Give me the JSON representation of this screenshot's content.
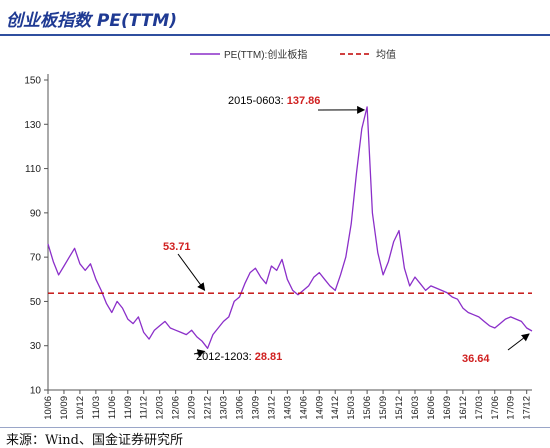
{
  "header": {
    "title": "创业板指数 PE(TTM)"
  },
  "source": "来源：Wind、国金证券研究所",
  "chart_data": {
    "type": "line",
    "title": "",
    "xlabel": "",
    "ylabel": "",
    "ylim": [
      10,
      150
    ],
    "yticks": [
      10,
      30,
      50,
      70,
      90,
      110,
      130,
      150
    ],
    "x_tick_labels": [
      "10/06",
      "10/09",
      "10/12",
      "11/03",
      "11/06",
      "11/09",
      "11/12",
      "12/03",
      "12/06",
      "12/09",
      "12/12",
      "13/03",
      "13/06",
      "13/09",
      "13/12",
      "14/03",
      "14/06",
      "14/09",
      "14/12",
      "15/03",
      "15/06",
      "15/09",
      "15/12",
      "16/03",
      "16/06",
      "16/09",
      "16/12",
      "17/03",
      "17/06",
      "17/09",
      "17/12"
    ],
    "legend": {
      "placement": "top",
      "entries": [
        "PE(TTM):创业板指",
        "均值"
      ]
    },
    "series": [
      {
        "name": "PE(TTM):创业板指",
        "color": "#8b2fc9",
        "points": [
          [
            "2010-06",
            76
          ],
          [
            "2010-07",
            68
          ],
          [
            "2010-08",
            62
          ],
          [
            "2010-09",
            66
          ],
          [
            "2010-10",
            70
          ],
          [
            "2010-11",
            74
          ],
          [
            "2010-12",
            67
          ],
          [
            "2011-01",
            64
          ],
          [
            "2011-02",
            67
          ],
          [
            "2011-03",
            60
          ],
          [
            "2011-04",
            55
          ],
          [
            "2011-05",
            49
          ],
          [
            "2011-06",
            45
          ],
          [
            "2011-07",
            50
          ],
          [
            "2011-08",
            47
          ],
          [
            "2011-09",
            42
          ],
          [
            "2011-10",
            40
          ],
          [
            "2011-11",
            43
          ],
          [
            "2011-12",
            36
          ],
          [
            "2012-01",
            33
          ],
          [
            "2012-02",
            37
          ],
          [
            "2012-03",
            39
          ],
          [
            "2012-04",
            41
          ],
          [
            "2012-05",
            38
          ],
          [
            "2012-06",
            37
          ],
          [
            "2012-07",
            36
          ],
          [
            "2012-08",
            35
          ],
          [
            "2012-09",
            37
          ],
          [
            "2012-10",
            34
          ],
          [
            "2012-11",
            32
          ],
          [
            "2012-12",
            28.81
          ],
          [
            "2013-01",
            35
          ],
          [
            "2013-02",
            38
          ],
          [
            "2013-03",
            41
          ],
          [
            "2013-04",
            43
          ],
          [
            "2013-05",
            50
          ],
          [
            "2013-06",
            52
          ],
          [
            "2013-07",
            58
          ],
          [
            "2013-08",
            63
          ],
          [
            "2013-09",
            65
          ],
          [
            "2013-10",
            61
          ],
          [
            "2013-11",
            58
          ],
          [
            "2013-12",
            66
          ],
          [
            "2014-01",
            64
          ],
          [
            "2014-02",
            69
          ],
          [
            "2014-03",
            60
          ],
          [
            "2014-04",
            55
          ],
          [
            "2014-05",
            53
          ],
          [
            "2014-06",
            55
          ],
          [
            "2014-07",
            57
          ],
          [
            "2014-08",
            61
          ],
          [
            "2014-09",
            63
          ],
          [
            "2014-10",
            60
          ],
          [
            "2014-11",
            57
          ],
          [
            "2014-12",
            55
          ],
          [
            "2015-01",
            62
          ],
          [
            "2015-02",
            70
          ],
          [
            "2015-03",
            85
          ],
          [
            "2015-04",
            108
          ],
          [
            "2015-05",
            128
          ],
          [
            "2015-06",
            137.86
          ],
          [
            "2015-07",
            90
          ],
          [
            "2015-08",
            72
          ],
          [
            "2015-09",
            62
          ],
          [
            "2015-10",
            68
          ],
          [
            "2015-11",
            77
          ],
          [
            "2015-12",
            82
          ],
          [
            "2016-01",
            65
          ],
          [
            "2016-02",
            57
          ],
          [
            "2016-03",
            61
          ],
          [
            "2016-04",
            58
          ],
          [
            "2016-05",
            55
          ],
          [
            "2016-06",
            57
          ],
          [
            "2016-07",
            56
          ],
          [
            "2016-08",
            55
          ],
          [
            "2016-09",
            54
          ],
          [
            "2016-10",
            52
          ],
          [
            "2016-11",
            51
          ],
          [
            "2016-12",
            47
          ],
          [
            "2017-01",
            45
          ],
          [
            "2017-02",
            44
          ],
          [
            "2017-03",
            43
          ],
          [
            "2017-04",
            41
          ],
          [
            "2017-05",
            39
          ],
          [
            "2017-06",
            38
          ],
          [
            "2017-07",
            40
          ],
          [
            "2017-08",
            42
          ],
          [
            "2017-09",
            43
          ],
          [
            "2017-10",
            42
          ],
          [
            "2017-11",
            41
          ],
          [
            "2017-12",
            38
          ],
          [
            "2018-01",
            36.64
          ]
        ]
      },
      {
        "name": "均值",
        "color": "#c00000",
        "dashed": true,
        "constant": 53.71
      }
    ],
    "annotations": [
      {
        "id": "peak",
        "date_label": "2015-0603: ",
        "value_label": "137.86",
        "x": "2015-06",
        "y": 137.86
      },
      {
        "id": "low",
        "date_label": "2012-1203: ",
        "value_label": "28.81",
        "x": "2012-12",
        "y": 28.81
      },
      {
        "id": "last",
        "date_label": "",
        "value_label": "36.64",
        "x": "2018-01",
        "y": 36.64
      },
      {
        "id": "mean",
        "date_label": "",
        "value_label": "53.71",
        "x": "2012-12",
        "y": 53.71
      }
    ]
  }
}
